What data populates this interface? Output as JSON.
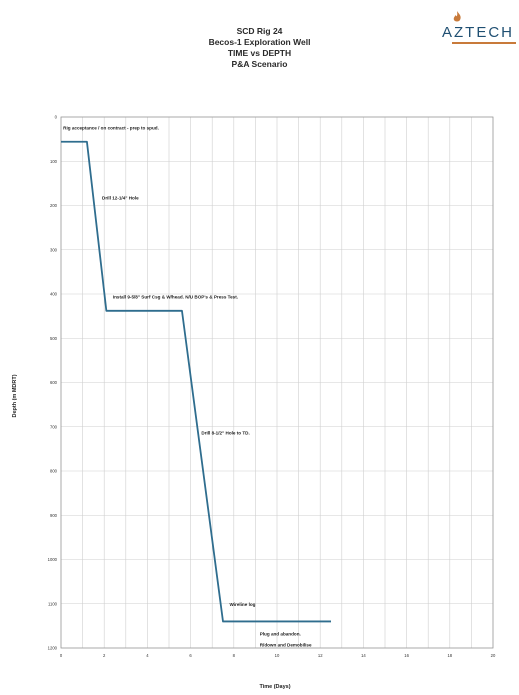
{
  "header": {
    "title_lines": [
      "SCD Rig 24",
      "Becos-1 Exploration Well",
      "TIME vs DEPTH",
      "P&A Scenario"
    ]
  },
  "logo": {
    "text": "AZTECH",
    "icon": "flame-logo-icon",
    "brand_color": "#1f4f72",
    "accent_color": "#c87a3a"
  },
  "chart_data": {
    "type": "line",
    "title": "TIME vs DEPTH",
    "xlabel": "Time (Days)",
    "ylabel": "Depth (m MDRT)",
    "xlim": [
      0,
      20
    ],
    "ylim": [
      0,
      1200
    ],
    "y_inverted": true,
    "x_ticks": [
      0,
      1,
      2,
      3,
      4,
      5,
      6,
      7,
      8,
      9,
      10,
      11,
      12,
      13,
      14,
      15,
      16,
      17,
      18,
      19,
      20
    ],
    "x_tick_labels": [
      0,
      2,
      4,
      6,
      8,
      10,
      12,
      14,
      16,
      18,
      20
    ],
    "y_ticks": [
      0,
      100,
      200,
      300,
      400,
      500,
      600,
      700,
      800,
      900,
      1000,
      1100,
      1200
    ],
    "grid": true,
    "line_color": "#2f6d8e",
    "series": [
      {
        "x": [
          0,
          1.2,
          2.1,
          5.6,
          7.5,
          12.5
        ],
        "y": [
          56,
          56,
          438,
          438,
          1140,
          1140
        ]
      }
    ],
    "annotations": [
      {
        "text": "Rig acceptance / on contract - prep to spud.",
        "x": 0.1,
        "y": 28
      },
      {
        "text": "Drill 12-1/4\" Hole",
        "x": 1.9,
        "y": 186
      },
      {
        "text": "Install 9-5/8\" Surf Csg & W/head. N/U BOP's & Press Test.",
        "x": 2.4,
        "y": 410
      },
      {
        "text": "Drill 8-1/2\" Hole to TD.",
        "x": 6.5,
        "y": 718
      },
      {
        "text": "Wireline log",
        "x": 7.8,
        "y": 1105
      },
      {
        "text": "Plug and abandon.",
        "x": 9.2,
        "y": 1172
      },
      {
        "text": "R/down and Demobilise",
        "x": 9.2,
        "y": 1197
      }
    ]
  }
}
